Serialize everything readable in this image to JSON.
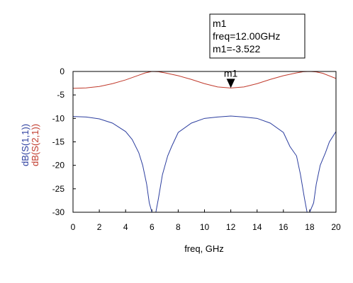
{
  "chart_data": {
    "type": "line",
    "xlabel": "freq, GHz",
    "ylabels": [
      "dB(S(1,1))",
      "dB(S(2,1))"
    ],
    "xlim": [
      0,
      20
    ],
    "ylim": [
      -30,
      0
    ],
    "x_ticks": [
      0,
      2,
      4,
      6,
      8,
      10,
      12,
      14,
      16,
      18,
      20
    ],
    "y_ticks": [
      0,
      -5,
      -10,
      -15,
      -20,
      -25,
      -30
    ],
    "grid": false,
    "series": [
      {
        "name": "dB(S(2,1))",
        "color": "#c0392b",
        "x": [
          0,
          1,
          2,
          3,
          4,
          5,
          5.5,
          6,
          6.5,
          7,
          8,
          9,
          10,
          11,
          12,
          13,
          14,
          15,
          16,
          17,
          17.5,
          18,
          18.5,
          19,
          20
        ],
        "y": [
          -3.6,
          -3.5,
          -3.2,
          -2.6,
          -1.8,
          -0.8,
          -0.3,
          0,
          -0.05,
          -0.3,
          -0.9,
          -1.7,
          -2.6,
          -3.3,
          -3.52,
          -3.3,
          -2.6,
          -1.7,
          -0.9,
          -0.3,
          -0.05,
          0,
          -0.1,
          -0.4,
          -1.5
        ]
      },
      {
        "name": "dB(S(1,1))",
        "color": "#2c3e9f",
        "x": [
          0,
          1,
          2,
          3,
          4,
          4.5,
          5,
          5.3,
          5.6,
          5.8,
          6.0,
          6.3,
          6.5,
          6.8,
          7.2,
          7.5,
          8,
          9,
          10,
          11,
          12,
          13,
          14,
          15,
          16,
          16.5,
          17,
          17.3,
          17.6,
          17.8,
          18.0,
          18.3,
          18.5,
          18.8,
          19.2,
          19.5,
          20
        ],
        "y": [
          -9.6,
          -9.7,
          -10.1,
          -11.0,
          -12.8,
          -14.5,
          -17.3,
          -20.0,
          -24.0,
          -28.0,
          -30.0,
          -30.0,
          -27.0,
          -22.0,
          -18.0,
          -16.0,
          -13.0,
          -11.0,
          -10.0,
          -9.7,
          -9.5,
          -9.7,
          -10.0,
          -11.0,
          -13.0,
          -16.0,
          -18.0,
          -22.0,
          -27.0,
          -30.0,
          -30.0,
          -28.0,
          -24.0,
          -20.0,
          -17.3,
          -15.0,
          -12.8
        ]
      }
    ],
    "marker": {
      "name": "m1",
      "x": 12.0,
      "y": -3.522,
      "series": "dB(S(2,1))",
      "box_lines": [
        "m1",
        "freq=12.00GHz",
        "m1=-3.522"
      ]
    }
  }
}
